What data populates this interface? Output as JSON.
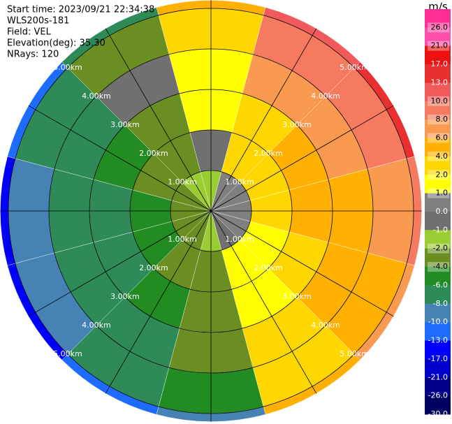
{
  "chart_data": {
    "type": "ppi",
    "header": [
      "Start time: 2023/09/21 22:34:38",
      "WLS200s-181",
      "Field: VEL",
      "Elevation(deg): 35.30",
      "NRays: 120"
    ],
    "azimuths": [
      0,
      30,
      60,
      90,
      120,
      150,
      180,
      210,
      240,
      270,
      300,
      330
    ],
    "values": [
      [
        -1,
        0,
        2,
        2,
        4,
        6
      ],
      [
        1,
        3,
        4,
        8,
        10,
        13
      ],
      [
        1,
        4,
        6,
        8,
        10,
        17
      ],
      [
        1,
        4,
        5,
        6,
        8,
        10
      ],
      [
        1,
        2,
        4,
        5,
        6,
        8
      ],
      [
        0,
        2,
        2,
        3,
        4,
        6
      ],
      [
        -1,
        -2,
        -2,
        -3,
        -4,
        -8
      ],
      [
        -2,
        -3,
        -5,
        -6,
        -7,
        -10
      ],
      [
        -3,
        -5,
        -7,
        -7,
        -9,
        -13
      ],
      [
        -2,
        -4,
        -7,
        -7,
        -9,
        -13
      ],
      [
        -2,
        -3,
        -5,
        -6,
        -7,
        -10
      ],
      [
        -1,
        -2,
        -2,
        0,
        -2,
        -6
      ]
    ],
    "rlim": [
      0,
      5.2
    ],
    "rticks": [
      {
        "value": 1,
        "label": "1.00km"
      },
      {
        "value": 2,
        "label": "2.00km"
      },
      {
        "value": 3,
        "label": "3.00km"
      },
      {
        "value": 4,
        "label": "4.00km"
      },
      {
        "value": 5,
        "label": "5.00km"
      }
    ],
    "colorbar": {
      "label": "m/s",
      "lim": [
        -30,
        30
      ],
      "ticks": [
        {
          "value": 26,
          "label": "26.0"
        },
        {
          "value": 21,
          "label": "21.0"
        },
        {
          "value": 17,
          "label": "17.0"
        },
        {
          "value": 13,
          "label": "13.0"
        },
        {
          "value": 10,
          "label": "10.0"
        },
        {
          "value": 8,
          "label": "8.0"
        },
        {
          "value": 6,
          "label": "6.0"
        },
        {
          "value": 4,
          "label": "4.0"
        },
        {
          "value": 2,
          "label": "2.0"
        },
        {
          "value": 1,
          "label": "1.0"
        },
        {
          "value": 0,
          "label": "0.0"
        },
        {
          "value": -1,
          "label": "-1.0"
        },
        {
          "value": -2,
          "label": "-2.0"
        },
        {
          "value": -4,
          "label": "-4.0"
        },
        {
          "value": -6,
          "label": "-6.0"
        },
        {
          "value": -8,
          "label": "-8.0"
        },
        {
          "value": -10,
          "label": "-10.0"
        },
        {
          "value": -13,
          "label": "-13.0"
        },
        {
          "value": -17,
          "label": "-17.0"
        },
        {
          "value": -21,
          "label": "-21.0"
        },
        {
          "value": -26,
          "label": "-26.0"
        },
        {
          "value": -30,
          "label": "-30.0"
        }
      ],
      "colors": [
        "#ff2d95",
        "#ff4fa8",
        "#ee1111",
        "#e83030",
        "#f05a5a",
        "#f57a60",
        "#f99a50",
        "#ffb000",
        "#ffd700",
        "#ffff00",
        "#808080",
        "#707070",
        "#9acd32",
        "#6b8e23",
        "#228b22",
        "#2e8b57",
        "#4682b4",
        "#1e6cff",
        "#0000ff",
        "#0000cd",
        "#00008b",
        "#000060"
      ]
    }
  }
}
